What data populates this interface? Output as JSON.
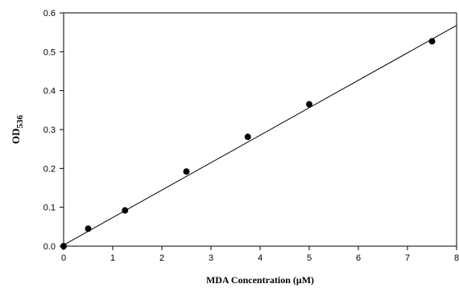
{
  "chart_data": {
    "type": "scatter",
    "title": "",
    "xlabel": "MDA Concentration (μM)",
    "ylabel_main": "OD",
    "ylabel_sub": "536",
    "xlim": [
      0,
      8
    ],
    "ylim": [
      0,
      0.6
    ],
    "xticks": [
      "0",
      "1",
      "2",
      "3",
      "4",
      "5",
      "6",
      "7",
      "8"
    ],
    "yticks": [
      "0.0",
      "0.1",
      "0.2",
      "0.3",
      "0.4",
      "0.5",
      "0.6"
    ],
    "grid": false,
    "legend": "none",
    "series": [
      {
        "x": [
          0,
          0.5,
          1.25,
          2.5,
          3.75,
          5,
          7.5
        ],
        "y": [
          0.0,
          0.045,
          0.092,
          0.192,
          0.281,
          0.365,
          0.527
        ],
        "marker": "filled-circle",
        "color": "#000000"
      }
    ],
    "fit_line": {
      "intercept": 0.003,
      "slope": 0.0706,
      "x_range": [
        0,
        8
      ]
    }
  }
}
